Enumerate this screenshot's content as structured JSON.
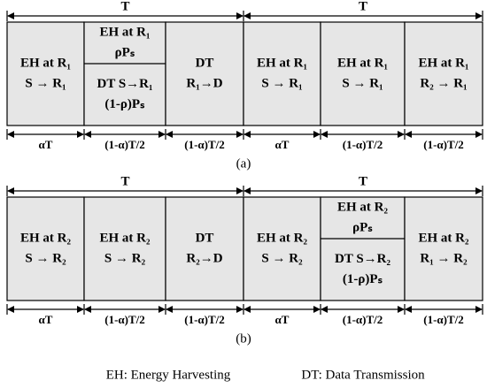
{
  "panels": [
    {
      "caption": "(a)",
      "periods": [
        "T",
        "T"
      ],
      "blocks": [
        {
          "lines": [
            "EH at R₁",
            "S → R₁"
          ]
        },
        {
          "parts": [
            [
              "EH at R₁",
              "ρPₛ"
            ],
            [
              "DT S→R₁",
              "(1-ρ)Pₛ"
            ]
          ]
        },
        {
          "lines": [
            "DT",
            "R₁→D"
          ]
        },
        {
          "lines": [
            "EH at R₁",
            "S → R₁"
          ]
        },
        {
          "lines": [
            "EH at R₁",
            "S → R₁"
          ]
        },
        {
          "lines": [
            "EH at R₁",
            "R₂ → R₁"
          ]
        }
      ],
      "durations": [
        "αT",
        "(1-α)T/2",
        "(1-α)T/2",
        "αT",
        "(1-α)T/2",
        "(1-α)T/2"
      ]
    },
    {
      "caption": "(b)",
      "periods": [
        "T",
        "T"
      ],
      "blocks": [
        {
          "lines": [
            "EH at R₂",
            "S → R₂"
          ]
        },
        {
          "lines": [
            "EH at R₂",
            "S → R₂"
          ]
        },
        {
          "lines": [
            "DT",
            "R₂→D"
          ]
        },
        {
          "lines": [
            "EH at R₂",
            "S → R₂"
          ]
        },
        {
          "parts": [
            [
              "EH at R₂",
              "ρPₛ"
            ],
            [
              "DT S→R₂",
              "(1-ρ)Pₛ"
            ]
          ]
        },
        {
          "lines": [
            "EH at R₂",
            "R₁ → R₂"
          ]
        }
      ],
      "durations": [
        "αT",
        "(1-α)T/2",
        "(1-α)T/2",
        "αT",
        "(1-α)T/2",
        "(1-α)T/2"
      ]
    }
  ],
  "legend": [
    "EH: Energy Harvesting",
    "DT: Data Transmission"
  ]
}
